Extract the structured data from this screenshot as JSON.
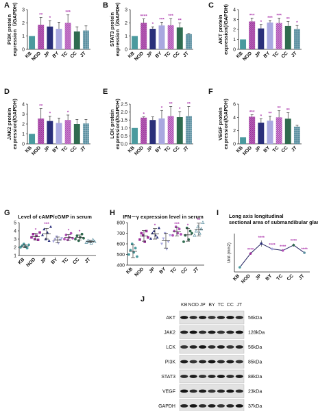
{
  "figure": {
    "panel_letters": [
      "A",
      "B",
      "C",
      "D",
      "E",
      "F",
      "G",
      "H",
      "I",
      "J"
    ]
  },
  "colors": {
    "KB": "#4a9a9e",
    "NOD": "#9b2d9b",
    "JP": "#2a2f7a",
    "BY": "#a9a8e0",
    "TC": "#b04fb6",
    "CC": "#2f6b4f",
    "JT": "#5a8fa0"
  },
  "chart_data": [
    {
      "panel": "A",
      "type": "bar",
      "ylabel": "PI3K protein expression（/GAPDH)",
      "categories": [
        "KB",
        "NOD",
        "JP",
        "BY",
        "TC",
        "CC",
        "JT"
      ],
      "values": [
        1.0,
        1.85,
        1.72,
        1.55,
        2.0,
        1.35,
        1.42
      ],
      "errors": [
        0,
        0.55,
        0.45,
        0.5,
        0.6,
        0.35,
        0.35
      ],
      "sig": [
        "",
        "**",
        "*",
        "",
        "***",
        "",
        ""
      ],
      "ylim": [
        0,
        3
      ],
      "yticks": [
        "0",
        "1",
        "2",
        "3"
      ]
    },
    {
      "panel": "B",
      "type": "bar",
      "ylabel": "STAT3 protein expression（/GAPDH)",
      "categories": [
        "KB",
        "NOD",
        "JP",
        "BY",
        "TC",
        "CC",
        "JT"
      ],
      "values": [
        1.0,
        2.0,
        1.55,
        1.8,
        1.82,
        1.65,
        1.15
      ],
      "errors": [
        0,
        0.3,
        0.15,
        0.25,
        0.5,
        0.35,
        0.05
      ],
      "sig": [
        "",
        "****",
        "*",
        "***",
        "***",
        "**",
        ""
      ],
      "ylim": [
        0,
        3
      ],
      "yticks": [
        "0",
        "1",
        "2",
        "3"
      ]
    },
    {
      "panel": "C",
      "type": "bar",
      "ylabel": "AKT protein expression(/GAPDH)",
      "categories": [
        "KB",
        "NOD",
        "JP",
        "BY",
        "TC",
        "CC",
        "JT"
      ],
      "values": [
        1.0,
        2.8,
        2.1,
        2.7,
        2.65,
        2.35,
        2.05
      ],
      "errors": [
        0,
        0.35,
        0.4,
        0.2,
        0.5,
        0.45,
        0.35
      ],
      "sig": [
        "",
        "***",
        "*",
        "***",
        "***",
        "**",
        "*"
      ],
      "ylim": [
        0,
        4
      ],
      "yticks": [
        "0",
        "1",
        "2",
        "3",
        "4"
      ]
    },
    {
      "panel": "D",
      "type": "bar",
      "ylabel": "JAK2 protein expression(/GAPDH)",
      "categories": [
        "KB",
        "NOD",
        "JP",
        "BY",
        "TC",
        "CC",
        "JT"
      ],
      "values": [
        1.0,
        2.55,
        2.3,
        2.1,
        2.4,
        2.0,
        2.05
      ],
      "errors": [
        0,
        1.0,
        0.5,
        0.5,
        0.5,
        0.45,
        0.4
      ],
      "sig": [
        "",
        "**",
        "*",
        "",
        "*",
        "",
        ""
      ],
      "ylim": [
        0,
        4
      ],
      "yticks": [
        "0",
        "1",
        "2",
        "3",
        "4"
      ]
    },
    {
      "panel": "E",
      "type": "bar",
      "ylabel": "LCK protein expression(/GAPDH)",
      "categories": [
        "KB",
        "NOD",
        "JP",
        "BY",
        "TC",
        "CC",
        "JT"
      ],
      "values": [
        1.0,
        1.65,
        1.5,
        1.6,
        1.75,
        1.68,
        1.75
      ],
      "errors": [
        0,
        0.05,
        0.2,
        0.5,
        0.6,
        0.35,
        0.6
      ],
      "sig": [
        "",
        "*",
        "",
        "*",
        "**",
        "*",
        "**"
      ],
      "ylim": [
        0,
        2.5
      ],
      "yticks": [
        "0.0",
        "0.5",
        "1.0",
        "1.5",
        "2.0",
        "2.5"
      ]
    },
    {
      "panel": "F",
      "type": "bar",
      "ylabel": "VEGF protein expression(/GAPDH)",
      "categories": [
        "KB",
        "NOD",
        "JP",
        "BY",
        "TC",
        "CC",
        "JT"
      ],
      "values": [
        1.0,
        4.1,
        3.2,
        3.5,
        4.0,
        3.8,
        2.6
      ],
      "errors": [
        0,
        0.3,
        0.6,
        0.7,
        1.0,
        0.9,
        0.2
      ],
      "sig": [
        "",
        "***",
        "*",
        "**",
        "**",
        "**",
        ""
      ],
      "ylim": [
        0,
        6
      ],
      "yticks": [
        "0",
        "2",
        "4",
        "6"
      ]
    },
    {
      "panel": "G",
      "type": "scatter",
      "title": "Level of cAMP/cGMP in serum",
      "categories": [
        "KB",
        "NOD",
        "JP",
        "BY",
        "TC",
        "CC",
        "JT"
      ],
      "points": [
        [
          2.0,
          2.2,
          2.4,
          2.1,
          1.9,
          2.3
        ],
        [
          3.2,
          3.6,
          3.0,
          3.4,
          2.9,
          3.8
        ],
        [
          3.5,
          4.2,
          3.0,
          3.8,
          2.8,
          4.5
        ],
        [
          2.7,
          3.0,
          3.3,
          2.5,
          2.9,
          3.1
        ],
        [
          3.0,
          3.5,
          2.9,
          3.2,
          3.7,
          3.1
        ],
        [
          3.0,
          3.4,
          2.8,
          3.2,
          3.6,
          3.1
        ],
        [
          2.6,
          2.8,
          2.7,
          2.5,
          2.9,
          2.7
        ]
      ],
      "means": [
        2.15,
        3.3,
        3.65,
        2.9,
        3.2,
        3.2,
        2.7
      ],
      "sd": [
        0.2,
        0.4,
        0.65,
        0.35,
        0.35,
        0.3,
        0.15
      ],
      "sig": [
        "",
        "*",
        "***",
        "",
        "*",
        "*",
        ""
      ],
      "ylim": [
        1,
        5
      ],
      "yticks": [
        "1",
        "2",
        "3",
        "4",
        "5"
      ]
    },
    {
      "panel": "H",
      "type": "scatter",
      "title": "IFN－γ expression level in serum",
      "categories": [
        "KB",
        "NOD",
        "JP",
        "BY",
        "TC",
        "CC",
        "JT"
      ],
      "points": [
        [
          500,
          540,
          600,
          520,
          560,
          480
        ],
        [
          640,
          700,
          680,
          620,
          720,
          660
        ],
        [
          650,
          700,
          720,
          680,
          660,
          750
        ],
        [
          600,
          650,
          700,
          550,
          620,
          680
        ],
        [
          680,
          720,
          760,
          700,
          740,
          690
        ],
        [
          620,
          680,
          750,
          640,
          720,
          700
        ],
        [
          680,
          720,
          760,
          700,
          740,
          800
        ]
      ],
      "means": [
        530,
        675,
        695,
        630,
        715,
        685,
        735
      ],
      "sd": [
        60,
        50,
        50,
        70,
        40,
        60,
        60
      ],
      "sig": [
        "",
        "",
        "*",
        "",
        "***",
        "*",
        "**"
      ],
      "ylim": [
        400,
        800
      ],
      "yticks": [
        "400",
        "500",
        "600",
        "700",
        "800"
      ]
    },
    {
      "panel": "I",
      "type": "line",
      "title": "Long axis longitudinal sectional area of submandibular gland",
      "ylabel": "Unit (mm2)",
      "categories": [
        "KB",
        "NOD",
        "JP",
        "BY",
        "TC",
        "CC",
        "JT"
      ],
      "values": [
        3.8,
        4.7,
        5.35,
        5.0,
        4.9,
        5.25,
        4.75
      ],
      "errors": [
        0,
        0.08,
        0.2,
        0.08,
        0.08,
        0.1,
        0.05
      ],
      "sig": [
        "",
        "****",
        "****",
        "****",
        "****",
        "****",
        "****"
      ],
      "ylim": [
        3.5,
        6.0
      ]
    }
  ],
  "blot": {
    "panel": "J",
    "lanes": [
      "KB",
      "NOD",
      "JP",
      "BY",
      "TC",
      "CC",
      "JT"
    ],
    "rows": [
      {
        "protein": "AKT",
        "size": "56kDa"
      },
      {
        "protein": "JAK2",
        "size": "128kDa"
      },
      {
        "protein": "LCK",
        "size": "56kDa"
      },
      {
        "protein": "PI3K",
        "size": "85kDa"
      },
      {
        "protein": "STAT3",
        "size": "88kDa"
      },
      {
        "protein": "VEGF",
        "size": "23kDa"
      },
      {
        "protein": "GAPDH",
        "size": "37kDa"
      }
    ]
  }
}
